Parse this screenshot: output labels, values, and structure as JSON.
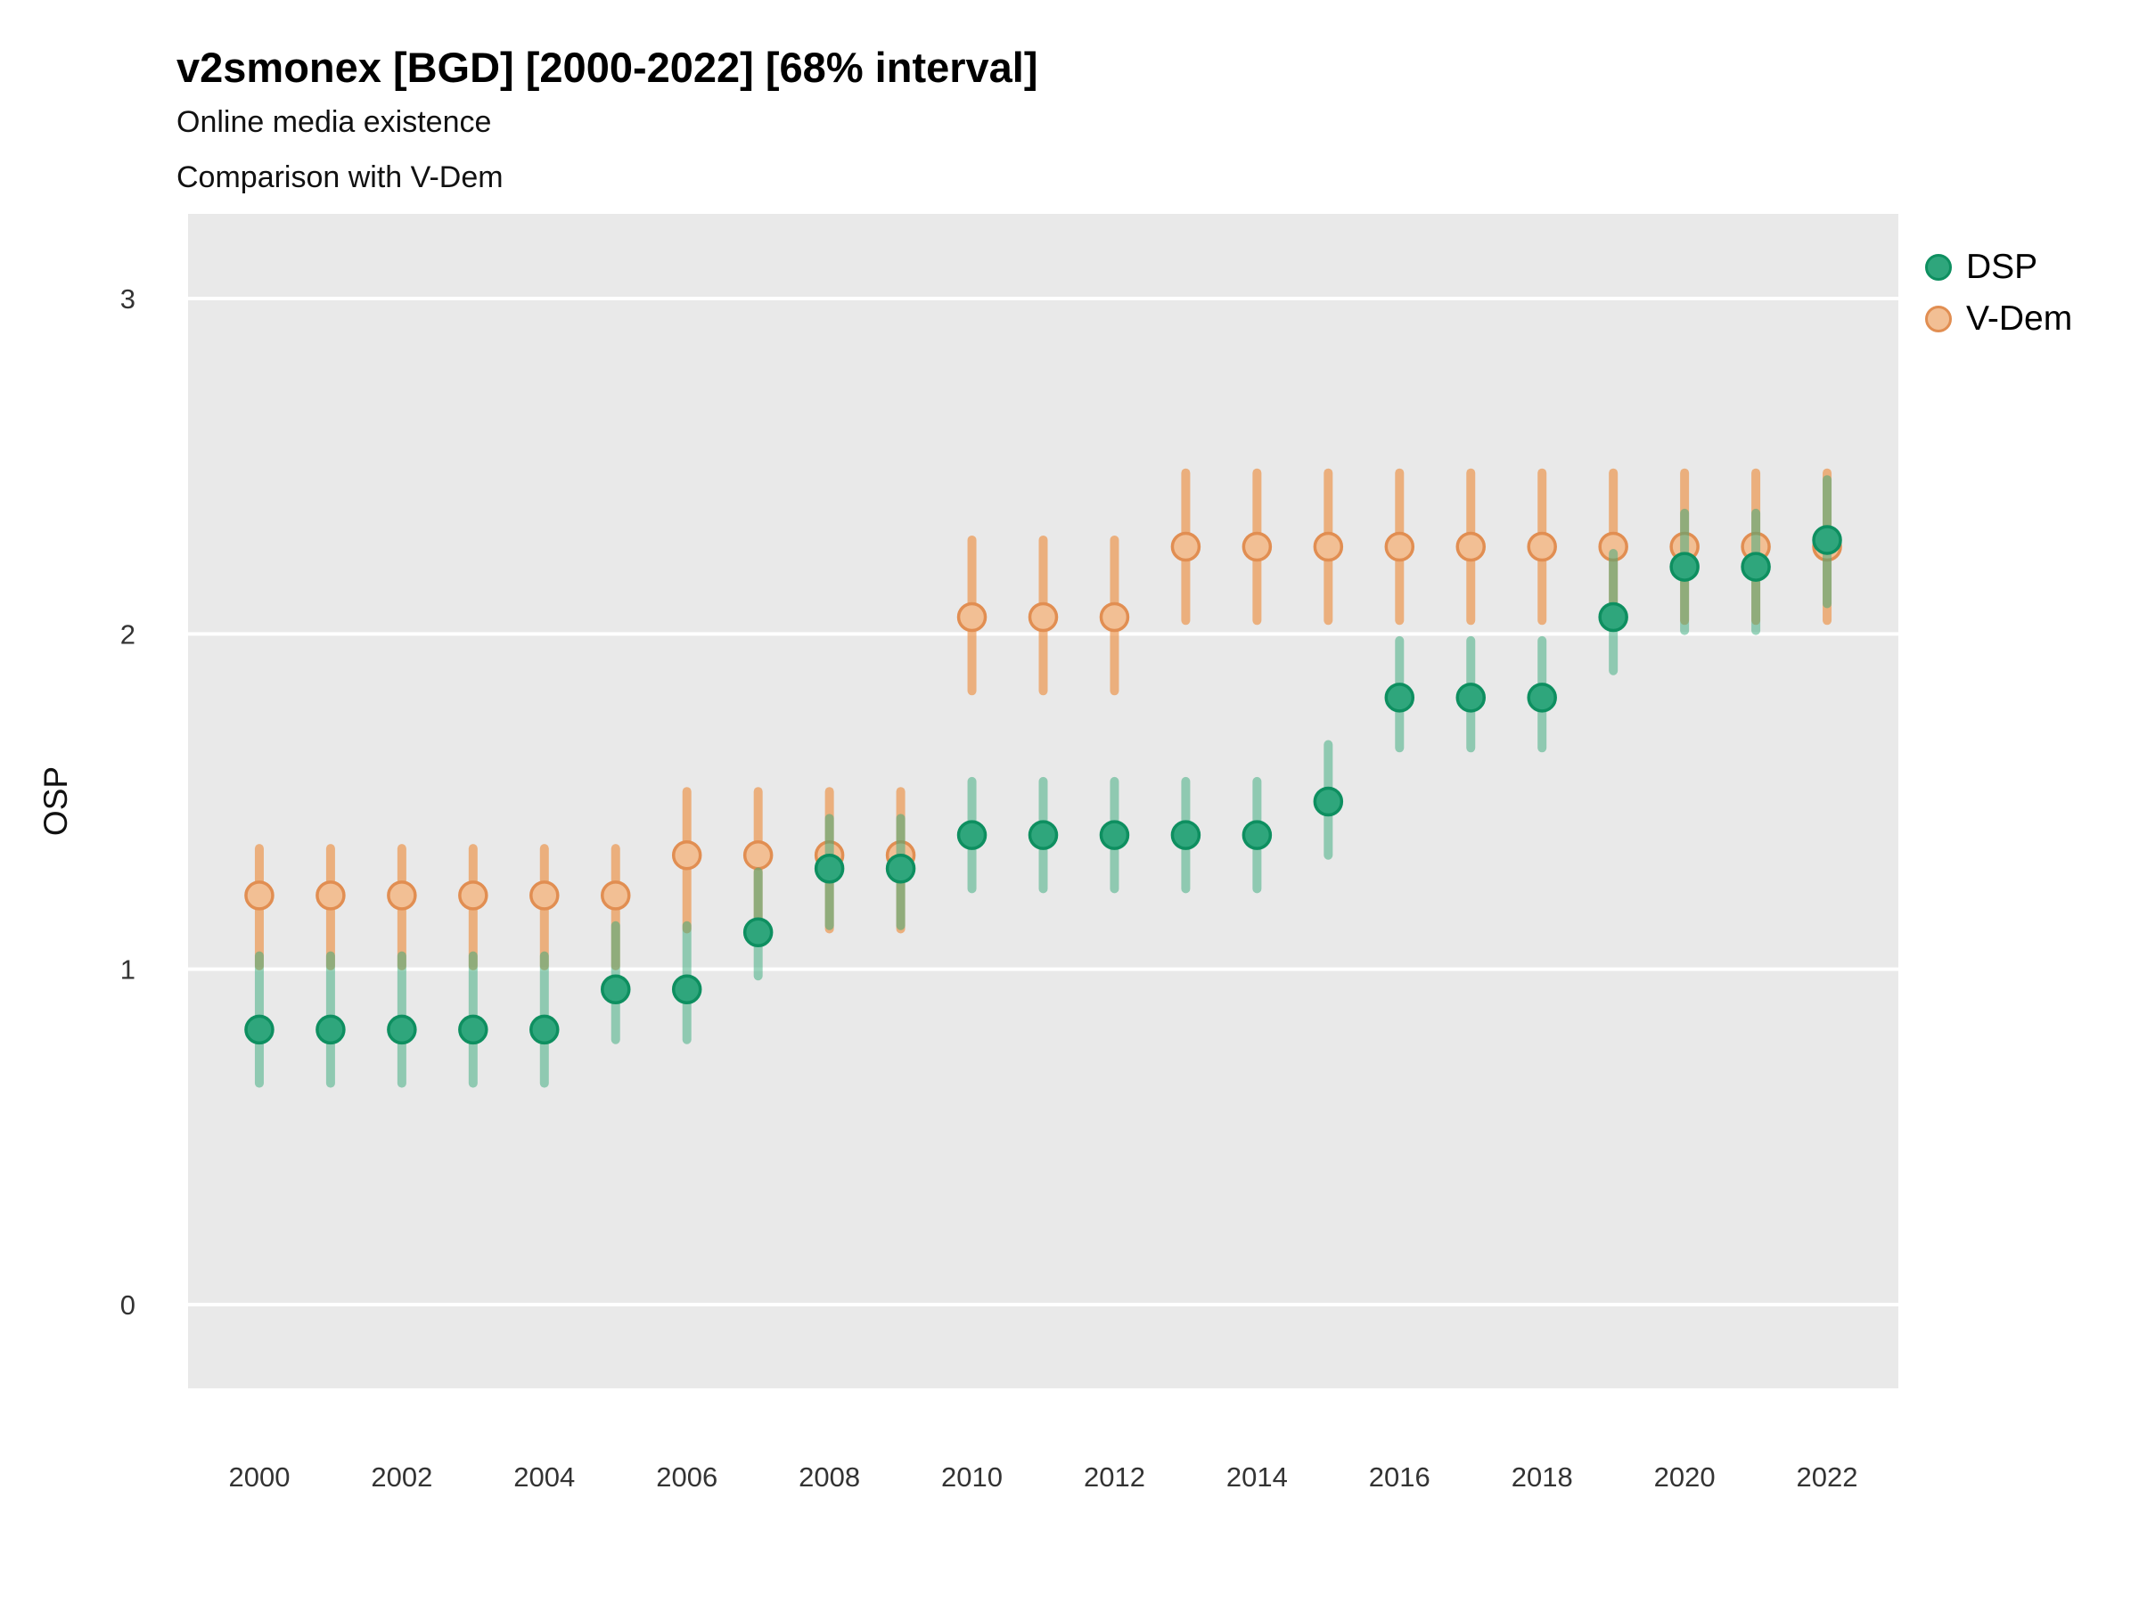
{
  "page": {
    "title": "v2smonex [BGD] [2000-2022] [68% interval]",
    "subtitle1": "Online media existence",
    "subtitle2": "Comparison with V-Dem"
  },
  "axes": {
    "ylabel": "OSP",
    "y_tick_labels": [
      "0",
      "1",
      "2",
      "3"
    ],
    "x_tick_labels": [
      "2000",
      "2002",
      "2004",
      "2006",
      "2008",
      "2010",
      "2012",
      "2014",
      "2016",
      "2018",
      "2020",
      "2022"
    ]
  },
  "chart_data": {
    "type": "scatter",
    "style": "pointrange",
    "title": "v2smonex [BGD] [2000-2022] [68% interval]",
    "subtitle1": "Online media existence",
    "subtitle2": "Comparison with V-Dem",
    "ylabel": "OSP",
    "xlabel": "",
    "interval": "68%",
    "legend_position": "right-top",
    "grid": "major-horizontal-white-on-gray",
    "panel_bg": "#e9e9e9",
    "gridline_color": "#ffffff",
    "tick_text_color": "#333333",
    "ylim": [
      -0.25,
      3.25
    ],
    "xlim": [
      1999,
      2023
    ],
    "y_ticks": [
      0,
      1,
      2,
      3
    ],
    "x_ticks": [
      2000,
      2002,
      2004,
      2006,
      2008,
      2010,
      2012,
      2014,
      2016,
      2018,
      2020,
      2022
    ],
    "x": [
      2000,
      2001,
      2002,
      2003,
      2004,
      2005,
      2006,
      2007,
      2008,
      2009,
      2010,
      2011,
      2012,
      2013,
      2014,
      2015,
      2016,
      2017,
      2018,
      2019,
      2020,
      2021,
      2022
    ],
    "series": [
      {
        "name": "DSP",
        "point_fill": "#2fa67c",
        "point_stroke": "#0e8f60",
        "bar_color": "rgba(53,169,121,0.5)",
        "est": [
          0.82,
          0.82,
          0.82,
          0.82,
          0.82,
          0.94,
          0.94,
          1.11,
          1.3,
          1.3,
          1.4,
          1.4,
          1.4,
          1.4,
          1.4,
          1.5,
          1.81,
          1.81,
          1.81,
          2.05,
          2.2,
          2.2,
          2.28
        ],
        "lo": [
          0.66,
          0.66,
          0.66,
          0.66,
          0.66,
          0.79,
          0.79,
          0.98,
          1.13,
          1.13,
          1.24,
          1.24,
          1.24,
          1.24,
          1.24,
          1.34,
          1.66,
          1.66,
          1.66,
          1.89,
          2.01,
          2.01,
          2.09
        ],
        "hi": [
          1.04,
          1.04,
          1.04,
          1.04,
          1.04,
          1.13,
          1.13,
          1.29,
          1.45,
          1.45,
          1.56,
          1.56,
          1.56,
          1.56,
          1.56,
          1.67,
          1.98,
          1.98,
          1.98,
          2.24,
          2.36,
          2.36,
          2.46
        ]
      },
      {
        "name": "V-Dem",
        "point_fill": "#f2bf94",
        "point_stroke": "#e18e52",
        "bar_color": "rgba(236,138,58,0.62)",
        "est": [
          1.22,
          1.22,
          1.22,
          1.22,
          1.22,
          1.22,
          1.34,
          1.34,
          1.34,
          1.34,
          2.05,
          2.05,
          2.05,
          2.26,
          2.26,
          2.26,
          2.26,
          2.26,
          2.26,
          2.26,
          2.26,
          2.26,
          2.26
        ],
        "lo": [
          1.01,
          1.01,
          1.01,
          1.01,
          1.01,
          1.01,
          1.12,
          1.12,
          1.12,
          1.12,
          1.83,
          1.83,
          1.83,
          2.04,
          2.04,
          2.04,
          2.04,
          2.04,
          2.04,
          2.04,
          2.04,
          2.04,
          2.04
        ],
        "hi": [
          1.36,
          1.36,
          1.36,
          1.36,
          1.36,
          1.36,
          1.53,
          1.53,
          1.53,
          1.53,
          2.28,
          2.28,
          2.28,
          2.48,
          2.48,
          2.48,
          2.48,
          2.48,
          2.48,
          2.48,
          2.48,
          2.48,
          2.48
        ]
      }
    ]
  }
}
